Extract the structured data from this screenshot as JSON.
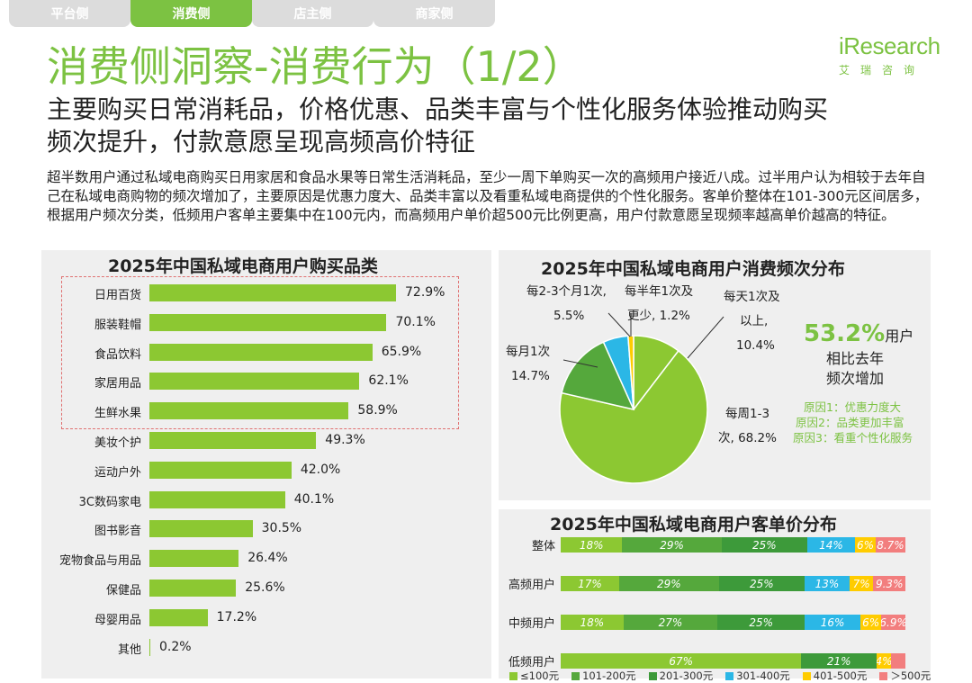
{
  "tabs": [
    {
      "label": "平台侧",
      "active": false
    },
    {
      "label": "消费侧",
      "active": true
    },
    {
      "label": "店主侧",
      "active": false
    },
    {
      "label": "商家侧",
      "active": false
    }
  ],
  "header": {
    "title": "消费侧洞察-消费行为（1/2）",
    "subtitle_line1": "主要购买日常消耗品，价格优惠、品类丰富与个性化服务体验推动购买",
    "subtitle_line2": "频次提升，付款意愿呈现高频高价特征",
    "description": "超半数用户通过私域电商购买日用家居和食品水果等日常生活消耗品，至少一周下单购买一次的高频用户接近八成。过半用户认为相较于去年自己在私域电商购物的频次增加了，主要原因是优惠力度大、品类丰富以及看重私域电商提供的个性化服务。客单价整体在101-300元区间居多，根据用户频次分类，低频用户客单主要集中在100元内，而高频用户单价超500元比例更高，用户付款意愿呈现频率越高单价越高的特征。"
  },
  "logo": {
    "word_i": "i",
    "word_rest": "Research",
    "sub": "艾瑞咨询"
  },
  "colors": {
    "accent": "#7cc242",
    "bar": "#8cc832",
    "panel": "#efefef",
    "dash": "#e07070"
  },
  "chart_data": [
    {
      "type": "bar",
      "orientation": "horizontal",
      "title": "2025年中国私域电商用户购买品类",
      "categories": [
        "日用百货",
        "服装鞋帽",
        "食品饮料",
        "家居用品",
        "生鲜水果",
        "美妆个护",
        "运动户外",
        "3C数码家电",
        "图书影音",
        "宠物食品与用品",
        "保健品",
        "母婴用品",
        "其他"
      ],
      "values": [
        72.9,
        70.1,
        65.9,
        62.1,
        58.9,
        49.3,
        42.0,
        40.1,
        30.5,
        26.4,
        25.6,
        17.2,
        0.2
      ],
      "value_labels": [
        "72.9%",
        "70.1%",
        "65.9%",
        "62.1%",
        "58.9%",
        "49.3%",
        "42.0%",
        "40.1%",
        "30.5%",
        "26.4%",
        "25.6%",
        "17.2%",
        "0.2%"
      ],
      "highlighted_top": 5,
      "xlim": [
        0,
        100
      ]
    },
    {
      "type": "pie",
      "title": "2025年中国私域电商用户消费频次分布",
      "slices": [
        {
          "label": "每天1次及以上",
          "value": 10.4,
          "color": "#8cc832",
          "text1": "每天1次及",
          "text2": "以上,",
          "text3": "10.4%"
        },
        {
          "label": "每周1-3次",
          "value": 68.2,
          "color": "#8cc832",
          "text1": "每周1-3",
          "text2": "次, 68.2%"
        },
        {
          "label": "每月1次",
          "value": 14.7,
          "color": "#55a83c",
          "text1": "每月1次",
          "text2": "14.7%"
        },
        {
          "label": "每2-3个月1次",
          "value": 5.5,
          "color": "#2bb7e6",
          "text1": "每2-3个月1次,",
          "text2": "5.5%"
        },
        {
          "label": "每半年1次及更少",
          "value": 1.2,
          "color": "#ffcc00",
          "text1": "每半年1次及",
          "text2": "更少, 1.2%"
        }
      ],
      "annotation": {
        "big": "53.2%",
        "big_suffix": "用户",
        "line2": "相比去年",
        "line3": "频次增加",
        "reasons": [
          "原因1：优惠力度大",
          "原因2：品类更加丰富",
          "原因3：看重个性化服务"
        ]
      }
    },
    {
      "type": "bar",
      "stacked": true,
      "orientation": "horizontal",
      "title": "2025年中国私域电商用户客单价分布",
      "categories": [
        "整体",
        "高频用户",
        "中频用户",
        "低频用户"
      ],
      "series": [
        {
          "name": "≤100元",
          "color": "#8cc832",
          "values": [
            18,
            17,
            18,
            67
          ],
          "labels": [
            "18%",
            "17%",
            "18%",
            "67%"
          ]
        },
        {
          "name": "101-200元",
          "color": "#55a83c",
          "values": [
            29,
            29,
            27,
            0
          ],
          "labels": [
            "29%",
            "29%",
            "27%",
            ""
          ]
        },
        {
          "name": "201-300元",
          "color": "#3d9a3a",
          "values": [
            25,
            25,
            25,
            21
          ],
          "labels": [
            "25%",
            "25%",
            "25%",
            "21%"
          ]
        },
        {
          "name": "301-400元",
          "color": "#2bb7e6",
          "values": [
            14,
            13,
            16,
            0
          ],
          "labels": [
            "14%",
            "13%",
            "16%",
            ""
          ]
        },
        {
          "name": "401-500元",
          "color": "#ffcc00",
          "values": [
            6,
            7,
            6,
            4
          ],
          "labels": [
            "6%",
            "7%",
            "6%",
            "4%"
          ]
        },
        {
          "name": "＞500元",
          "color": "#f27e7e",
          "values": [
            8.7,
            9.3,
            6.9,
            4
          ],
          "labels": [
            "8.7%",
            "9.3%",
            "6.9%",
            ""
          ]
        }
      ]
    }
  ]
}
